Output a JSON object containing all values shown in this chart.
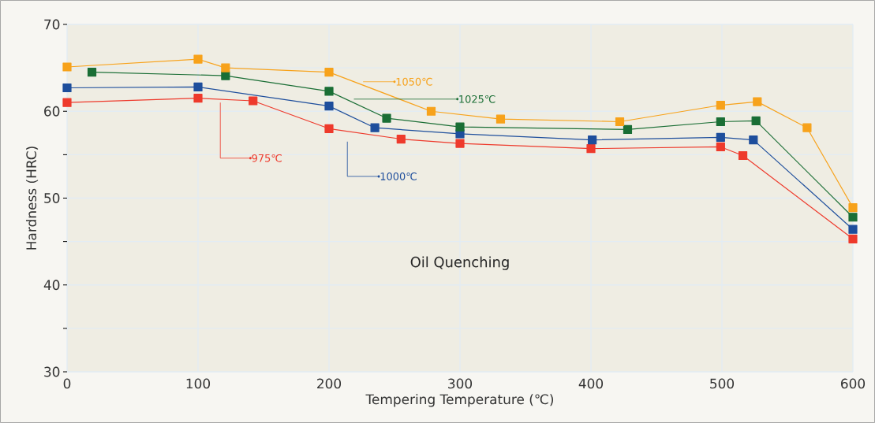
{
  "chart_data": {
    "type": "line",
    "xlabel": "Tempering Temperature (℃)",
    "ylabel": "Hardness (HRC)",
    "annotations": [
      "Oil Quenching"
    ],
    "xlim": [
      0,
      600
    ],
    "ylim": [
      30,
      70
    ],
    "xticks": [
      0,
      100,
      200,
      300,
      400,
      500,
      600
    ],
    "yticks": [
      30,
      {
        "value": 35,
        "label": null
      },
      40,
      {
        "value": 45,
        "label": null
      },
      50,
      {
        "value": 55,
        "label": null
      },
      60,
      {
        "value": 65,
        "label": null
      },
      70
    ],
    "grid": true,
    "legend": "top",
    "marker": "square",
    "line_style": "solid",
    "series": [
      {
        "name": "975℃",
        "color": "#ee3a2c",
        "x": [
          0,
          100,
          142,
          200,
          255,
          300,
          400,
          499,
          516,
          600
        ],
        "values": [
          61.0,
          61.5,
          61.2,
          58.0,
          56.8,
          56.3,
          55.7,
          55.9,
          54.9,
          45.3
        ]
      },
      {
        "name": "1000℃",
        "color": "#1e4e9c",
        "x": [
          0,
          100,
          200,
          235,
          300,
          401,
          499,
          524,
          600
        ],
        "values": [
          62.7,
          62.8,
          60.6,
          58.1,
          57.4,
          56.7,
          57.0,
          56.7,
          46.4
        ]
      },
      {
        "name": "1025℃",
        "color": "#1a6e35",
        "x": [
          19,
          121,
          200,
          244,
          300,
          428,
          499,
          526,
          600
        ],
        "values": [
          64.5,
          64.1,
          62.3,
          59.2,
          58.2,
          57.9,
          58.8,
          58.9,
          47.8
        ]
      },
      {
        "name": "1050℃",
        "color": "#f7a21b",
        "x": [
          0,
          100,
          121,
          200,
          278,
          331,
          422,
          499,
          527,
          565,
          600
        ],
        "values": [
          65.1,
          66.0,
          65.0,
          64.5,
          60.0,
          59.1,
          58.8,
          60.7,
          61.1,
          58.1,
          48.9
        ]
      }
    ]
  }
}
